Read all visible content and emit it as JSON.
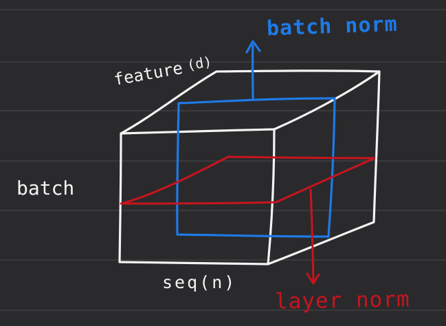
{
  "colors": {
    "background": "#2a2a2c",
    "rule_line": "#4a4a4e",
    "cube_stroke": "#f4f4f4",
    "batch_norm": "#1e7ae6",
    "layer_norm": "#c8141e"
  },
  "labels": {
    "batch_norm": "batch norm",
    "feature": "feature",
    "feature_dim": "(d)",
    "batch": "batch",
    "seq": "seq(n)",
    "layer_norm": "layer norm"
  }
}
